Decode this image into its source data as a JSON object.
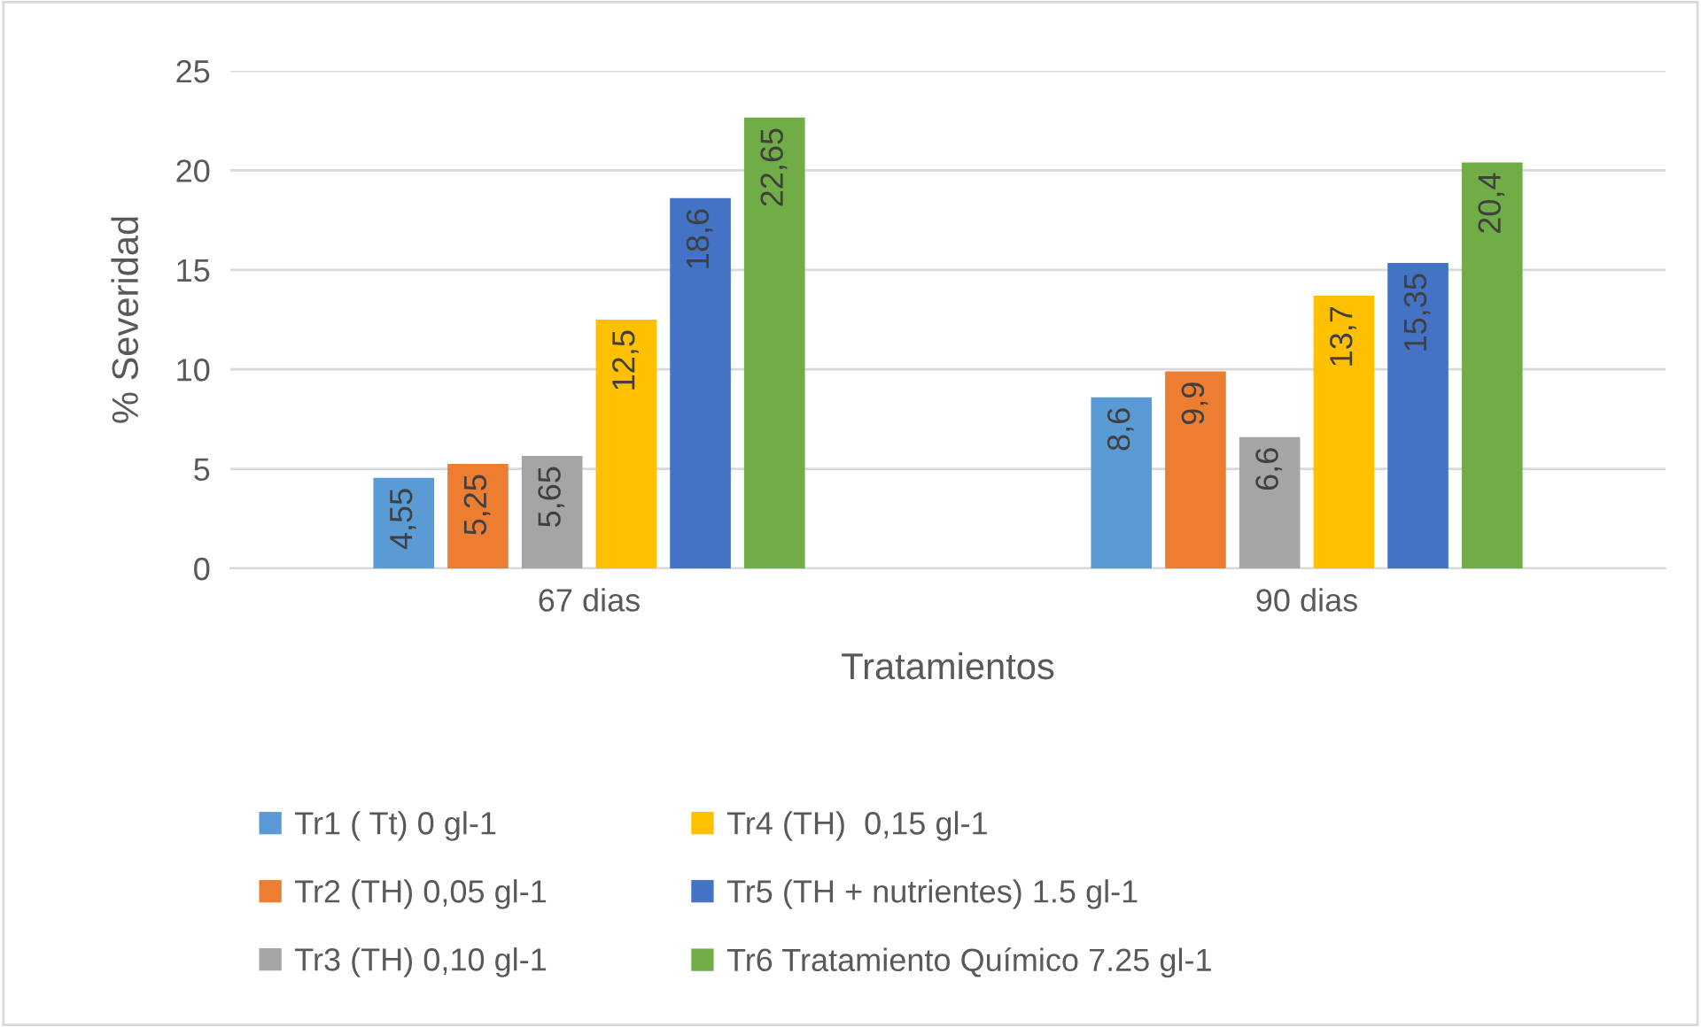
{
  "chart_data": {
    "type": "bar",
    "xlabel": "Tratamientos",
    "ylabel": "% Severidad",
    "categories": [
      "67 dias",
      "90 dias"
    ],
    "series": [
      {
        "name": "Tr1 ( Tt) 0 gl-1",
        "color": "#5b9bd5",
        "values": [
          4.55,
          8.6
        ],
        "value_labels": [
          "4,55",
          "8,6"
        ]
      },
      {
        "name": "Tr2 (TH) 0,05 gl-1",
        "color": "#ed7d31",
        "values": [
          5.25,
          9.9
        ],
        "value_labels": [
          "5,25",
          "9,9"
        ]
      },
      {
        "name": "Tr3 (TH) 0,10 gl-1",
        "color": "#a5a5a5",
        "values": [
          5.65,
          6.6
        ],
        "value_labels": [
          "5,65",
          "6,6"
        ]
      },
      {
        "name": "Tr4 (TH)  0,15 gl-1",
        "color": "#ffc000",
        "values": [
          12.5,
          13.7
        ],
        "value_labels": [
          "12,5",
          "13,7"
        ]
      },
      {
        "name": "Tr5 (TH + nutrientes) 1.5 gl-1",
        "color": "#4472c4",
        "values": [
          18.6,
          15.35
        ],
        "value_labels": [
          "18,6",
          "15,35"
        ]
      },
      {
        "name": "Tr6 Tratamiento Químico 7.25 gl-1",
        "color": "#70ad47",
        "values": [
          22.65,
          20.4
        ],
        "value_labels": [
          "22,65",
          "20,4"
        ]
      }
    ],
    "ylim": [
      0,
      25
    ],
    "yticks": [
      0,
      5,
      10,
      15,
      20,
      25
    ],
    "grid": "y",
    "legend": "bottom"
  }
}
